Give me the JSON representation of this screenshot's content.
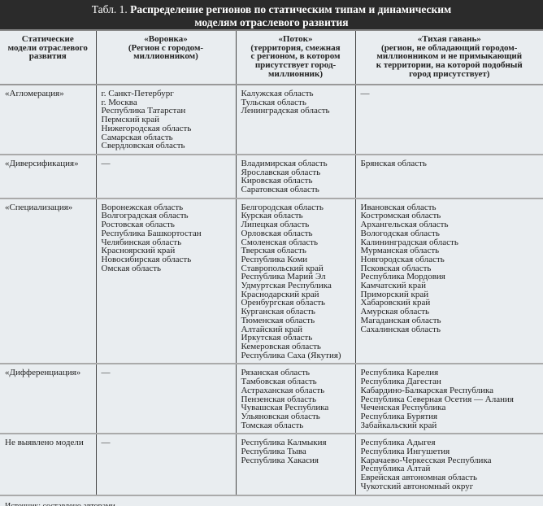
{
  "title": {
    "prefix": "Табл. 1.",
    "text": "Распределение регионов по статическим типам и динамическим",
    "text2": "моделям отраслевого развития"
  },
  "headers": [
    [
      "Статические",
      "модели отраслевого",
      "развития"
    ],
    [
      "«Воронка»",
      "(Регион с городом-",
      "миллионником)"
    ],
    [
      "«Поток»",
      "(территория, смежная",
      "с регионом, в котором",
      "присутствует город-",
      "миллионник)"
    ],
    [
      "«Тихая гавань»",
      "(регион, не обладающий городом-",
      "миллионником и не примыкающий",
      "к территории, на которой подобный",
      "город присутствует)"
    ]
  ],
  "rows": [
    {
      "model": "«Агломерация»",
      "h": 80,
      "voronka": [
        "г. Санкт-Петербург",
        "г. Москва",
        "Республика Татарстан",
        "Пермский край",
        "Нижегородская область",
        "Самарская область",
        "Свердловская область"
      ],
      "potok": [
        "Калужская область",
        "Тульская область",
        "Ленинградская область"
      ],
      "gavan": [
        "—"
      ]
    },
    {
      "model": "«Диверсификация»",
      "h": 53,
      "voronka": [
        "—"
      ],
      "potok": [
        "Владимирская область",
        "Ярославская область",
        "Кировская область",
        "Саратовская область"
      ],
      "gavan": [
        "Брянская область"
      ]
    },
    {
      "model": "«Специализация»",
      "h": 201,
      "voronka": [
        "Воронежская область",
        "Волгоградская область",
        "Ростовская область",
        "Республика Башкортостан",
        "Челябинская область",
        "Красноярский край",
        "Новосибирская область",
        "Омская область"
      ],
      "potok": [
        "Белгородская область",
        "Курская область",
        "Липецкая область",
        "Орловская область",
        "Смоленская область",
        "Тверская область",
        "Республика Коми",
        "Ставропольский край",
        "Республика Марий Эл",
        "Удмуртская Республика",
        "Краснодарский край",
        "Оренбургская область",
        "Курганская область",
        "Тюменская область",
        "Алтайский край",
        "Иркутская область",
        "Кемеровская область",
        "Республика Саха (Якутия)"
      ],
      "gavan": [
        "Ивановская область",
        "Костромская область",
        "Архангельская область",
        "Вологодская область",
        "Калининградская область",
        "Мурманская область",
        "Новгородская область",
        "Псковская область",
        "Республика Мордовия",
        "Камчатский край",
        "Приморский край",
        "Хабаровский край",
        "Амурская область",
        "Магаданская область",
        "Сахалинская область"
      ]
    },
    {
      "model": "«Дифференциация»",
      "h": 82,
      "voronka": [
        "—"
      ],
      "potok": [
        "Рязанская область",
        "Тамбовская область",
        "Астраханская область",
        "Пензенская область",
        "Чувашская Республика",
        "Ульяновская область",
        "Томская область"
      ],
      "gavan": [
        "Республика Карелия",
        "Республика Дагестан",
        "Кабардино-Балкарская Республика",
        "Республика Северная Осетия — Алания",
        "Чеченская Республика",
        "Республика Бурятия",
        "Забайкальский край"
      ]
    },
    {
      "model": "Не выявлено модели",
      "h": 71,
      "voronka": [
        "—"
      ],
      "potok": [
        "Республика Калмыкия",
        "Республика Тыва",
        "Республика Хакасия"
      ],
      "gavan": [
        "Республика Адыгея",
        "Республика Ингушетия",
        "Карачаево-Черкесская Республика",
        "Республика Алтай",
        "Еврейская автономная область",
        "Чукотский автономный округ"
      ]
    }
  ],
  "source": "Источник: составлено авторами."
}
